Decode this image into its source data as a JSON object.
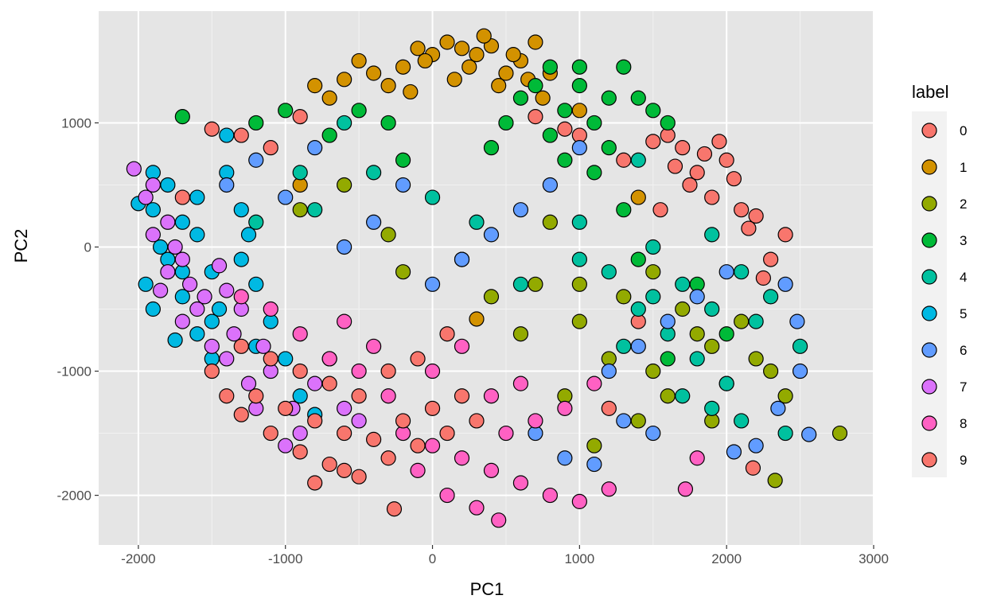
{
  "chart_data": {
    "type": "scatter",
    "title": "",
    "xlabel": "PC1",
    "ylabel": "PC2",
    "xlim": [
      -2270,
      3000
    ],
    "ylim": [
      -2400,
      1900
    ],
    "x_ticks": [
      -2000,
      -1000,
      0,
      1000,
      2000,
      3000
    ],
    "x_tick_labels": [
      "-2000",
      "-1000",
      "0",
      "1000",
      "2000",
      "3000"
    ],
    "y_ticks": [
      -2000,
      -1000,
      0,
      1000
    ],
    "y_tick_labels": [
      "-2000",
      "-1000",
      "0",
      "1000"
    ],
    "grid": true,
    "background": "#e5e5e5",
    "legend": {
      "title": "label",
      "position": "right",
      "entries": [
        "0",
        "1",
        "2",
        "3",
        "4",
        "5",
        "6",
        "7",
        "8",
        "9"
      ]
    },
    "series": [
      {
        "name": "0",
        "color": "#F8766D",
        "points": [
          [
            1700,
            800
          ],
          [
            1800,
            600
          ],
          [
            2000,
            700
          ],
          [
            1600,
            900
          ],
          [
            1900,
            400
          ],
          [
            2100,
            300
          ],
          [
            1850,
            750
          ],
          [
            1500,
            850
          ],
          [
            2200,
            250
          ],
          [
            -1700,
            400
          ],
          [
            -1500,
            950
          ],
          [
            -1300,
            900
          ],
          [
            1750,
            500
          ],
          [
            2050,
            550
          ],
          [
            1650,
            650
          ],
          [
            2150,
            150
          ],
          [
            900,
            950
          ],
          [
            700,
            1050
          ],
          [
            1950,
            850
          ],
          [
            2300,
            -100
          ],
          [
            2180,
            -1780
          ],
          [
            1200,
            -1300
          ],
          [
            1400,
            -600
          ],
          [
            -900,
            1050
          ],
          [
            2400,
            100
          ],
          [
            1550,
            300
          ],
          [
            2250,
            -250
          ],
          [
            -1100,
            800
          ],
          [
            1300,
            700
          ],
          [
            1000,
            900
          ]
        ]
      },
      {
        "name": "1",
        "color": "#D39200",
        "points": [
          [
            0,
            1550
          ],
          [
            200,
            1600
          ],
          [
            400,
            1620
          ],
          [
            -200,
            1450
          ],
          [
            -400,
            1400
          ],
          [
            600,
            1500
          ],
          [
            100,
            1650
          ],
          [
            300,
            1550
          ],
          [
            -600,
            1350
          ],
          [
            -100,
            1600
          ],
          [
            500,
            1400
          ],
          [
            700,
            1650
          ],
          [
            -300,
            1300
          ],
          [
            150,
            1350
          ],
          [
            -500,
            1500
          ],
          [
            250,
            1450
          ],
          [
            450,
            1300
          ],
          [
            650,
            1350
          ],
          [
            -800,
            1300
          ],
          [
            -50,
            1500
          ],
          [
            350,
            1700
          ],
          [
            800,
            1400
          ],
          [
            -700,
            1200
          ],
          [
            550,
            1550
          ],
          [
            -150,
            1250
          ],
          [
            1000,
            1100
          ],
          [
            300,
            -580
          ],
          [
            1400,
            400
          ],
          [
            -900,
            500
          ],
          [
            750,
            1200
          ]
        ]
      },
      {
        "name": "2",
        "color": "#93AA00",
        "points": [
          [
            2770,
            -1500
          ],
          [
            2330,
            -1880
          ],
          [
            1500,
            -1000
          ],
          [
            1800,
            -700
          ],
          [
            2200,
            -900
          ],
          [
            1000,
            -600
          ],
          [
            1300,
            -400
          ],
          [
            700,
            -300
          ],
          [
            1600,
            -1200
          ],
          [
            2000,
            -1100
          ],
          [
            1100,
            -1600
          ],
          [
            1900,
            -800
          ],
          [
            2400,
            -1200
          ],
          [
            1200,
            -900
          ],
          [
            900,
            -1200
          ],
          [
            -200,
            -200
          ],
          [
            400,
            -400
          ],
          [
            1700,
            -500
          ],
          [
            2100,
            -600
          ],
          [
            1400,
            -1400
          ],
          [
            -600,
            500
          ],
          [
            -300,
            100
          ],
          [
            200,
            -100
          ],
          [
            800,
            200
          ],
          [
            1500,
            -200
          ],
          [
            2300,
            -1000
          ],
          [
            600,
            -700
          ],
          [
            1000,
            -300
          ],
          [
            -900,
            300
          ],
          [
            1900,
            -1400
          ]
        ]
      },
      {
        "name": "3",
        "color": "#00BA38",
        "points": [
          [
            800,
            1450
          ],
          [
            1000,
            1300
          ],
          [
            1300,
            1450
          ],
          [
            1200,
            1200
          ],
          [
            900,
            1100
          ],
          [
            1100,
            1000
          ],
          [
            700,
            1300
          ],
          [
            1400,
            1200
          ],
          [
            600,
            1200
          ],
          [
            1500,
            1100
          ],
          [
            1000,
            1450
          ],
          [
            1200,
            800
          ],
          [
            1600,
            1000
          ],
          [
            800,
            900
          ],
          [
            -300,
            1000
          ],
          [
            -500,
            1100
          ],
          [
            -700,
            900
          ],
          [
            1300,
            300
          ],
          [
            1100,
            600
          ],
          [
            1400,
            -100
          ],
          [
            500,
            1000
          ],
          [
            -1000,
            1100
          ],
          [
            -1200,
            1000
          ],
          [
            -1700,
            1050
          ],
          [
            1800,
            -300
          ],
          [
            2000,
            -700
          ],
          [
            900,
            700
          ],
          [
            1600,
            -900
          ],
          [
            400,
            800
          ],
          [
            -200,
            700
          ]
        ]
      },
      {
        "name": "4",
        "color": "#00C19F",
        "points": [
          [
            1500,
            0
          ],
          [
            1700,
            -300
          ],
          [
            1900,
            -500
          ],
          [
            2100,
            -200
          ],
          [
            1800,
            -900
          ],
          [
            2000,
            -1100
          ],
          [
            1600,
            -700
          ],
          [
            2200,
            -600
          ],
          [
            1400,
            -500
          ],
          [
            1300,
            -800
          ],
          [
            1200,
            -200
          ],
          [
            1000,
            200
          ],
          [
            1700,
            -1200
          ],
          [
            2400,
            -1500
          ],
          [
            2100,
            -1400
          ],
          [
            1900,
            -1300
          ],
          [
            2300,
            -400
          ],
          [
            2500,
            -800
          ],
          [
            -900,
            600
          ],
          [
            -800,
            300
          ],
          [
            -1200,
            200
          ],
          [
            -400,
            600
          ],
          [
            0,
            400
          ],
          [
            300,
            200
          ],
          [
            -600,
            1000
          ],
          [
            1000,
            -100
          ],
          [
            1500,
            -400
          ],
          [
            1900,
            100
          ],
          [
            600,
            -300
          ],
          [
            1400,
            700
          ]
        ]
      },
      {
        "name": "5",
        "color": "#00B9E3",
        "points": [
          [
            -1800,
            500
          ],
          [
            -1900,
            300
          ],
          [
            -1700,
            200
          ],
          [
            -1600,
            100
          ],
          [
            -1800,
            -100
          ],
          [
            -1500,
            -200
          ],
          [
            -1700,
            -400
          ],
          [
            -1900,
            -500
          ],
          [
            -1600,
            -700
          ],
          [
            -1500,
            -900
          ],
          [
            -2000,
            350
          ],
          [
            -1400,
            600
          ],
          [
            -1300,
            300
          ],
          [
            -1600,
            400
          ],
          [
            -1850,
            0
          ],
          [
            -1700,
            -200
          ],
          [
            -1450,
            -500
          ],
          [
            -1300,
            -100
          ],
          [
            -1200,
            -300
          ],
          [
            -1100,
            -600
          ],
          [
            -1000,
            -900
          ],
          [
            -900,
            -1200
          ],
          [
            -800,
            -1350
          ],
          [
            -1200,
            -800
          ],
          [
            -1900,
            600
          ],
          [
            -1950,
            -300
          ],
          [
            -1750,
            -750
          ],
          [
            -1250,
            100
          ],
          [
            -1400,
            900
          ],
          [
            -1500,
            -600
          ]
        ]
      },
      {
        "name": "6",
        "color": "#619CFF",
        "points": [
          [
            1500,
            -1500
          ],
          [
            1300,
            -1400
          ],
          [
            1100,
            -1750
          ],
          [
            900,
            -1700
          ],
          [
            700,
            -1500
          ],
          [
            2500,
            -1000
          ],
          [
            2350,
            -1300
          ],
          [
            2200,
            -1600
          ],
          [
            2050,
            -1650
          ],
          [
            2560,
            -1510
          ],
          [
            2480,
            -600
          ],
          [
            2400,
            -300
          ],
          [
            1000,
            800
          ],
          [
            800,
            500
          ],
          [
            600,
            300
          ],
          [
            400,
            100
          ],
          [
            200,
            -100
          ],
          [
            0,
            -300
          ],
          [
            -200,
            500
          ],
          [
            -400,
            200
          ],
          [
            -600,
            0
          ],
          [
            -800,
            800
          ],
          [
            -1000,
            400
          ],
          [
            -1200,
            700
          ],
          [
            -1400,
            500
          ],
          [
            1200,
            -1000
          ],
          [
            1400,
            -800
          ],
          [
            1600,
            -600
          ],
          [
            1800,
            -400
          ],
          [
            2000,
            -200
          ]
        ]
      },
      {
        "name": "7",
        "color": "#DB72FB",
        "points": [
          [
            -2030,
            630
          ],
          [
            -1900,
            500
          ],
          [
            -1800,
            200
          ],
          [
            -1700,
            -100
          ],
          [
            -1650,
            -300
          ],
          [
            -1550,
            -400
          ],
          [
            -1400,
            -350
          ],
          [
            -1300,
            -500
          ],
          [
            -1800,
            -200
          ],
          [
            -1600,
            -500
          ],
          [
            -1500,
            -800
          ],
          [
            -1400,
            -900
          ],
          [
            -1200,
            -1300
          ],
          [
            -1000,
            -1600
          ],
          [
            -900,
            -1500
          ],
          [
            -1900,
            100
          ],
          [
            -1750,
            0
          ],
          [
            -1450,
            -150
          ],
          [
            -1100,
            -1000
          ],
          [
            -800,
            -1100
          ],
          [
            -600,
            -1300
          ],
          [
            -500,
            -1400
          ],
          [
            -1350,
            -700
          ],
          [
            -1250,
            -1100
          ],
          [
            -1950,
            400
          ],
          [
            -1850,
            -350
          ],
          [
            -1700,
            -600
          ],
          [
            -1150,
            -800
          ],
          [
            -700,
            -900
          ],
          [
            -950,
            -1300
          ]
        ]
      },
      {
        "name": "8",
        "color": "#FF61C3",
        "points": [
          [
            -200,
            -1500
          ],
          [
            0,
            -1600
          ],
          [
            200,
            -1700
          ],
          [
            400,
            -1800
          ],
          [
            600,
            -1900
          ],
          [
            800,
            -2000
          ],
          [
            1000,
            -2050
          ],
          [
            1200,
            -1950
          ],
          [
            -100,
            -1800
          ],
          [
            100,
            -2000
          ],
          [
            300,
            -2100
          ],
          [
            500,
            -1500
          ],
          [
            700,
            -1400
          ],
          [
            900,
            -1300
          ],
          [
            1100,
            -1100
          ],
          [
            -300,
            -1200
          ],
          [
            -500,
            -1000
          ],
          [
            -700,
            -900
          ],
          [
            -900,
            -700
          ],
          [
            -1100,
            -500
          ],
          [
            -1300,
            -400
          ],
          [
            0,
            -1000
          ],
          [
            200,
            -800
          ],
          [
            400,
            -1200
          ],
          [
            600,
            -1100
          ],
          [
            -400,
            -800
          ],
          [
            -600,
            -600
          ],
          [
            1720,
            -1950
          ],
          [
            1800,
            -1700
          ],
          [
            450,
            -2200
          ]
        ]
      },
      {
        "name": "9",
        "color": "#F8766D",
        "points": [
          [
            -1300,
            -1350
          ],
          [
            -1100,
            -1500
          ],
          [
            -900,
            -1650
          ],
          [
            -700,
            -1750
          ],
          [
            -500,
            -1850
          ],
          [
            -300,
            -1700
          ],
          [
            -100,
            -1600
          ],
          [
            100,
            -1500
          ],
          [
            300,
            -1400
          ],
          [
            -260,
            -2110
          ],
          [
            -1400,
            -1200
          ],
          [
            -1200,
            -1200
          ],
          [
            -1000,
            -1300
          ],
          [
            -800,
            -1400
          ],
          [
            -600,
            -1500
          ],
          [
            -400,
            -1550
          ],
          [
            -200,
            -1400
          ],
          [
            0,
            -1300
          ],
          [
            200,
            -1200
          ],
          [
            -1500,
            -1000
          ],
          [
            -1300,
            -800
          ],
          [
            -1100,
            -900
          ],
          [
            -900,
            -1000
          ],
          [
            -700,
            -1100
          ],
          [
            -500,
            -1200
          ],
          [
            -300,
            -1000
          ],
          [
            -100,
            -900
          ],
          [
            100,
            -700
          ],
          [
            -800,
            -1900
          ],
          [
            -600,
            -1800
          ]
        ]
      }
    ]
  }
}
